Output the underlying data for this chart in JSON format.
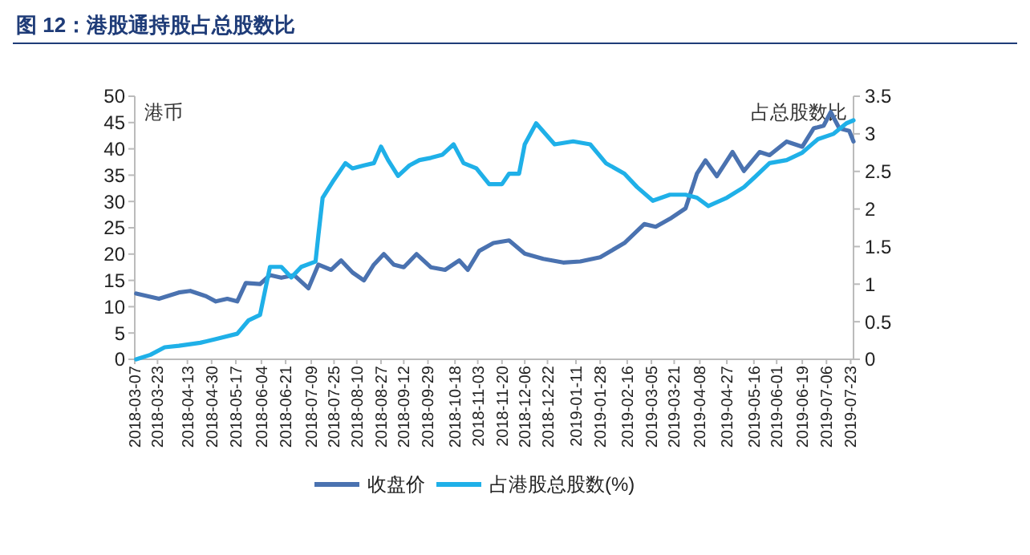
{
  "chart_data": {
    "type": "line",
    "title": "图 12：港股通持股占总股数比",
    "ylabel": "港币",
    "y2label": "占总股数比",
    "ylim": [
      0,
      50
    ],
    "yticks": [
      0,
      5,
      10,
      15,
      20,
      25,
      30,
      35,
      40,
      45,
      50
    ],
    "y2lim": [
      0,
      3.5
    ],
    "y2ticks": [
      0,
      0.5,
      1,
      1.5,
      2,
      2.5,
      3,
      3.5
    ],
    "xlim": [
      "2018-03-07",
      "2019-07-25"
    ],
    "xticks": [
      "2018-03-07",
      "2018-03-23",
      "2018-04-13",
      "2018-04-30",
      "2018-05-17",
      "2018-06-04",
      "2018-06-21",
      "2018-07-09",
      "2018-07-25",
      "2018-08-10",
      "2018-08-27",
      "2018-09-12",
      "2018-09-29",
      "2018-10-18",
      "2018-11-03",
      "2018-11-20",
      "2018-12-06",
      "2018-12-22",
      "2019-01-11",
      "2019-01-28",
      "2019-02-16",
      "2019-03-05",
      "2019-03-21",
      "2019-04-08",
      "2019-04-27",
      "2019-05-16",
      "2019-06-01",
      "2019-06-19",
      "2019-07-06",
      "2019-07-23"
    ],
    "grid": false,
    "legend": "bottom",
    "marker": "none",
    "line_style": "solid",
    "series": [
      {
        "name": "收盘价",
        "color": "#4a72b0",
        "x": [
          "2018-03-08",
          "2018-03-24",
          "2018-04-07",
          "2018-04-15",
          "2018-04-26",
          "2018-05-03",
          "2018-05-11",
          "2018-05-18",
          "2018-05-24",
          "2018-06-03",
          "2018-06-10",
          "2018-06-18",
          "2018-06-27",
          "2018-07-07",
          "2018-07-14",
          "2018-07-23",
          "2018-07-30",
          "2018-08-07",
          "2018-08-15",
          "2018-08-22",
          "2018-08-29",
          "2018-09-05",
          "2018-09-12",
          "2018-09-21",
          "2018-10-01",
          "2018-10-11",
          "2018-10-21",
          "2018-10-27",
          "2018-11-04",
          "2018-11-14",
          "2018-11-25",
          "2018-12-06",
          "2018-12-19",
          "2019-01-02",
          "2019-01-14",
          "2019-01-28",
          "2019-02-14",
          "2019-02-28",
          "2019-03-08",
          "2019-03-18",
          "2019-03-29",
          "2019-04-06",
          "2019-04-12",
          "2019-04-20",
          "2019-05-01",
          "2019-05-09",
          "2019-05-20",
          "2019-05-27",
          "2019-06-08",
          "2019-06-19",
          "2019-06-27",
          "2019-07-04",
          "2019-07-09",
          "2019-07-15",
          "2019-07-22",
          "2019-07-25"
        ],
        "values": [
          12.5,
          11.5,
          12.7,
          13,
          12,
          11,
          11.5,
          11,
          14.5,
          14.3,
          16,
          15.5,
          16,
          13.5,
          18,
          17,
          18.8,
          16.5,
          15,
          18,
          20,
          18,
          17.5,
          20,
          17.5,
          17,
          18.8,
          17,
          20.6,
          22.1,
          22.6,
          20.1,
          19.1,
          18.4,
          18.6,
          19.4,
          22.1,
          25.7,
          25.2,
          26.7,
          28.7,
          35.3,
          37.8,
          34.8,
          39.4,
          35.8,
          39.4,
          38.8,
          41.4,
          40.4,
          43.9,
          44.4,
          47,
          43.9,
          43.4,
          41.4
        ]
      },
      {
        "name": "占港股总股数(%)",
        "color": "#1fb0e8",
        "axis": "y2",
        "x": [
          "2018-03-08",
          "2018-03-18",
          "2018-03-28",
          "2018-04-07",
          "2018-04-22",
          "2018-05-03",
          "2018-05-18",
          "2018-05-26",
          "2018-06-03",
          "2018-06-10",
          "2018-06-18",
          "2018-06-25",
          "2018-07-02",
          "2018-07-12",
          "2018-07-14",
          "2018-07-17",
          "2018-07-24",
          "2018-08-02",
          "2018-08-07",
          "2018-08-15",
          "2018-08-22",
          "2018-08-27",
          "2018-09-01",
          "2018-09-08",
          "2018-09-16",
          "2018-09-23",
          "2018-10-01",
          "2018-10-09",
          "2018-10-17",
          "2018-10-24",
          "2018-11-02",
          "2018-11-11",
          "2018-11-20",
          "2018-11-25",
          "2018-12-02",
          "2018-12-06",
          "2018-12-14",
          "2018-12-27",
          "2019-01-09",
          "2019-01-21",
          "2019-02-01",
          "2019-02-14",
          "2019-02-23",
          "2019-03-06",
          "2019-03-18",
          "2019-03-29",
          "2019-04-06",
          "2019-04-14",
          "2019-04-27",
          "2019-05-09",
          "2019-05-17",
          "2019-05-27",
          "2019-06-08",
          "2019-06-19",
          "2019-06-30",
          "2019-07-11",
          "2019-07-20",
          "2019-07-25"
        ],
        "values": [
          0,
          0.06,
          0.16,
          0.18,
          0.22,
          0.27,
          0.34,
          0.52,
          0.59,
          1.23,
          1.23,
          1.09,
          1.23,
          1.3,
          1.65,
          2.15,
          2.36,
          2.61,
          2.54,
          2.58,
          2.61,
          2.83,
          2.65,
          2.44,
          2.58,
          2.65,
          2.68,
          2.72,
          2.86,
          2.61,
          2.54,
          2.33,
          2.33,
          2.47,
          2.47,
          2.86,
          3.14,
          2.86,
          2.9,
          2.86,
          2.61,
          2.47,
          2.29,
          2.11,
          2.19,
          2.19,
          2.15,
          2.04,
          2.15,
          2.29,
          2.43,
          2.61,
          2.65,
          2.75,
          2.93,
          3.0,
          3.14,
          3.18
        ]
      }
    ]
  }
}
